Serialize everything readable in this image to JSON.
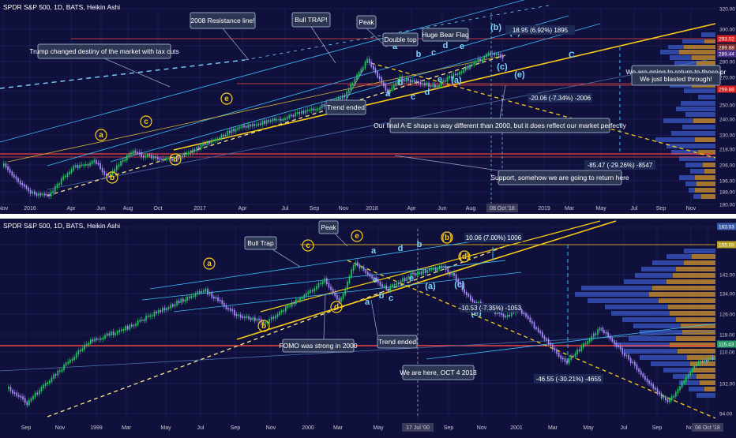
{
  "colors": {
    "background": "#10103c",
    "separator": "#ffffff",
    "grid": "#1c1c50",
    "bull": "#22c55e",
    "bear": "#a78bfa",
    "channel": "#38bdf8",
    "support_line": "#ef4444",
    "wave_label": "#7dd3fc",
    "trend_yellow": "#facc15",
    "dashed_white_yellow": "#fde68a",
    "profile_blue": "#3550b5",
    "profile_orange": "#b07a25",
    "projection": "#38bdf8"
  },
  "chart_data": [
    {
      "type": "candlestick",
      "title": "SPDR S&P 500, 1D, BATS, Heikin Ashi",
      "x_labels": [
        "Nov",
        "2016",
        "Apr",
        "Jun",
        "Aug",
        "Oct",
        "2017",
        "Apr",
        "Jul",
        "Sep",
        "Nov",
        "2018",
        "Apr",
        "Jun",
        "Aug",
        "08 Oct '18",
        "2019",
        "Mar",
        "May",
        "Jul",
        "Sep",
        "Nov"
      ],
      "y_ticks": [
        "320.00",
        "300.00",
        "290.00",
        "280.00",
        "270.00",
        "260.00",
        "250.00",
        "240.00",
        "230.00",
        "218.00",
        "206.00",
        "196.00",
        "188.00",
        "180.00"
      ],
      "price_tags": [
        "293.02",
        "289.88",
        "289.44",
        "259.88"
      ],
      "ylim": [
        180,
        320
      ],
      "series": [
        {
          "x": [
            "2015-11",
            "2016-01",
            "2016-02",
            "2016-04",
            "2016-06",
            "2016-06",
            "2016-08",
            "2016-10",
            "2016-11",
            "2017-03",
            "2017-06",
            "2017-09",
            "2017-11",
            "2018-01",
            "2018-02",
            "2018-03",
            "2018-05",
            "2018-07",
            "2018-09",
            "2018-10"
          ],
          "values": [
            208,
            188,
            186,
            206,
            211,
            200,
            218,
            212,
            214,
            236,
            243,
            250,
            259,
            286,
            262,
            272,
            266,
            280,
            291,
            288
          ]
        }
      ],
      "waves": [
        "a",
        "b",
        "c",
        "d",
        "e",
        "a",
        "b",
        "c",
        "d",
        "e",
        "(a)",
        "(b)",
        "(c)",
        "(d)",
        "(e)",
        "a",
        "e",
        "b",
        "c",
        "d",
        "e",
        "A",
        "B",
        "C"
      ],
      "callouts": [
        "2008 Resistance line!",
        "Trump changed destiny of the market with tax cuts",
        "Bull TRAP!",
        "Peak",
        "Double top",
        "Huge Bear Flag",
        "Trend ended",
        "Our final A-E shape is way different than 2000, but it does reflect our market perfectly",
        "Support, somehow we are going to return here",
        "We are going to return to these pr",
        "We just blasted through!"
      ],
      "measurements": [
        "18.95 (6.92%) 1895",
        "-20.06 (-7.34%) -2006",
        "-85.47 (-29.26%) -8547"
      ]
    },
    {
      "type": "candlestick",
      "title": "SPDR S&P 500, 1D, BATS, Heikin Ashi",
      "x_labels": [
        "Sep",
        "Nov",
        "1999",
        "Mar",
        "May",
        "Jul",
        "Sep",
        "Nov",
        "2000",
        "Mar",
        "May",
        "17 Jul '00",
        "Sep",
        "Nov",
        "2001",
        "Mar",
        "May",
        "Jul",
        "Sep",
        "Nov",
        "08 Oct '18"
      ],
      "y_ticks": [
        "163.03",
        "155.08",
        "142.00",
        "134.00",
        "126.00",
        "118.00",
        "110.00",
        "102.00",
        "94.00"
      ],
      "price_tags": [
        "163.03",
        "155.08",
        "115.43"
      ],
      "ylim": [
        90,
        165
      ],
      "series": [
        {
          "x": [
            "1998-09",
            "1998-10",
            "1998-12",
            "1999-02",
            "1999-04",
            "1999-07",
            "1999-08",
            "1999-10",
            "1999-12",
            "2000-01",
            "2000-02",
            "2000-03",
            "2000-05",
            "2000-06",
            "2000-08",
            "2000-09",
            "2000-10",
            "2000-12",
            "2001-01",
            "2001-04",
            "2001-06",
            "2001-09",
            "2001-11",
            "2001-12"
          ],
          "values": [
            102,
            96,
            120,
            126,
            134,
            141,
            131,
            128,
            140,
            145,
            136,
            152,
            141,
            147,
            150,
            146,
            137,
            130,
            134,
            112,
            126,
            96,
            112,
            114
          ]
        }
      ],
      "waves": [
        "a",
        "b",
        "c",
        "d",
        "e",
        "a",
        "b",
        "c",
        "d",
        "e",
        "(a)",
        "(b)",
        "(c)",
        "(d)",
        "(e)",
        "a",
        "e",
        "b"
      ],
      "callouts": [
        "Bull Trap",
        "Peak",
        "FOMO was strong in 2000",
        "Trend ended",
        "We are here, OCT 4 2018"
      ],
      "measurements": [
        "10.06 (7.00%) 1006",
        "-10.53 (-7.35%) -1053",
        "-46.55 (-30.21%) -4655"
      ]
    }
  ]
}
